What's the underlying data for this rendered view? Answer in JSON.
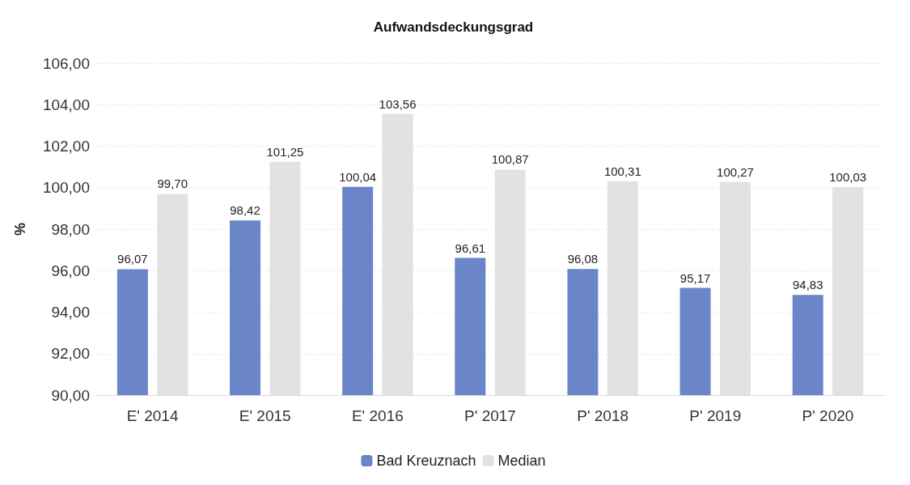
{
  "chart_data": {
    "type": "bar",
    "title": "Aufwandsdeckungsgrad",
    "ylabel": "%",
    "categories": [
      "E' 2014",
      "E' 2015",
      "E' 2016",
      "P' 2017",
      "P' 2018",
      "P' 2019",
      "P' 2020"
    ],
    "series": [
      {
        "name": "Bad Kreuznach",
        "color": "#6a86c8",
        "values": [
          96.07,
          98.42,
          100.04,
          96.61,
          96.08,
          95.17,
          94.83
        ],
        "value_labels": [
          "96,07",
          "98,42",
          "100,04",
          "96,61",
          "96,08",
          "95,17",
          "94,83"
        ]
      },
      {
        "name": "Median",
        "color": "#e2e2e2",
        "values": [
          99.7,
          101.25,
          103.56,
          100.87,
          100.31,
          100.27,
          100.03
        ],
        "value_labels": [
          "99,70",
          "101,25",
          "103,56",
          "100,87",
          "100,31",
          "100,27",
          "100,03"
        ]
      }
    ],
    "ylim": [
      90,
      106
    ],
    "yticks": [
      {
        "value": 90,
        "label": "90,00"
      },
      {
        "value": 92,
        "label": "92,00"
      },
      {
        "value": 94,
        "label": "94,00"
      },
      {
        "value": 96,
        "label": "96,00"
      },
      {
        "value": 98,
        "label": "98,00"
      },
      {
        "value": 100,
        "label": "100,00"
      },
      {
        "value": 102,
        "label": "102,00"
      },
      {
        "value": 104,
        "label": "104,00"
      },
      {
        "value": 106,
        "label": "106,00"
      }
    ],
    "grid": "y",
    "legend": "bottom"
  }
}
